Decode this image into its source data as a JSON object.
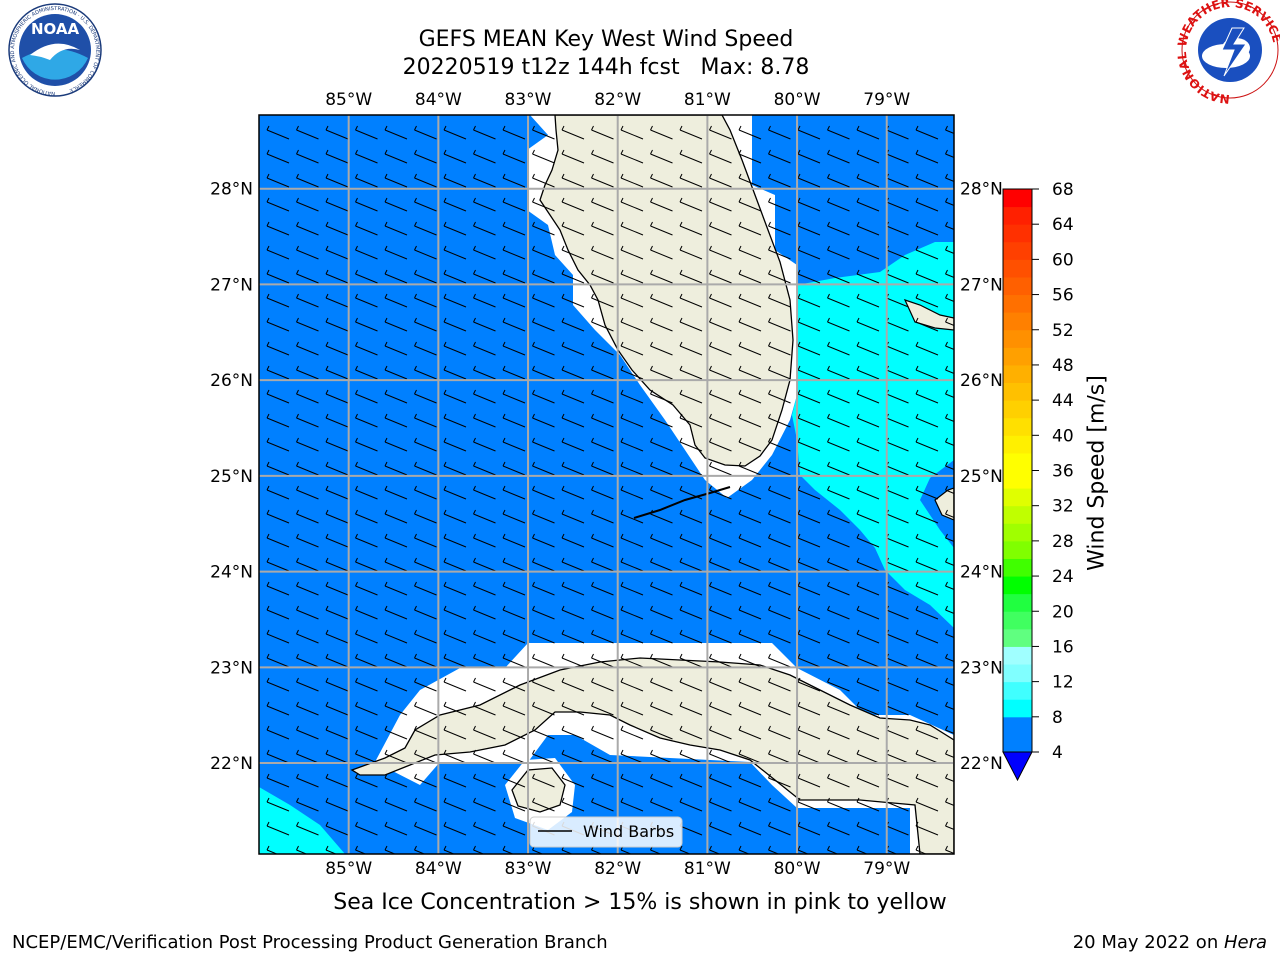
{
  "title": {
    "line1": "GEFS MEAN Key West Wind Speed",
    "line2": "20220519 t12z 144h fcst   Max: 8.78"
  },
  "logos": {
    "noaa_text": "NOAA",
    "noaa_ring_text": "NATIONAL OCEANIC AND ATMOSPHERIC ADMINISTRATION · U.S. DEPARTMENT OF COMMERCE",
    "nws_ring_text": "NATIONAL WEATHER SERVICE"
  },
  "map": {
    "lon_labels": [
      "85°W",
      "84°W",
      "83°W",
      "82°W",
      "81°W",
      "80°W",
      "79°W"
    ],
    "lat_labels": [
      "28°N",
      "27°N",
      "26°N",
      "25°N",
      "24°N",
      "23°N",
      "22°N"
    ],
    "lon_values": [
      -85,
      -84,
      -83,
      -82,
      -81,
      -80,
      -79
    ],
    "lat_values": [
      28,
      27,
      26,
      25,
      24,
      23,
      22
    ],
    "extent": {
      "lon_min": -86,
      "lon_max": -78.25,
      "lat_min": 21.05,
      "lat_max": 28.77
    },
    "legend_label": "Wind Barbs"
  },
  "colorbar": {
    "label": "Wind Speed [m/s]",
    "ticks": [
      "68",
      "64",
      "60",
      "56",
      "52",
      "48",
      "44",
      "40",
      "36",
      "32",
      "28",
      "24",
      "20",
      "16",
      "12",
      "8",
      "4"
    ],
    "levels": [
      4,
      8,
      10,
      12,
      14,
      16,
      18,
      20,
      22,
      24,
      26,
      28,
      30,
      32,
      34,
      36,
      38,
      40,
      42,
      44,
      46,
      48,
      50,
      52,
      54,
      56,
      58,
      60,
      62,
      64,
      66,
      68
    ],
    "colors": [
      "#0080ff",
      "#00ffff",
      "#40ffff",
      "#80ffff",
      "#a0ffff",
      "#60ff80",
      "#40ff60",
      "#20ff40",
      "#00ff00",
      "#40ff00",
      "#80ff00",
      "#a0ff00",
      "#c0ff00",
      "#e0ff00",
      "#ffff00",
      "#ffff00",
      "#fff000",
      "#ffe000",
      "#ffd000",
      "#ffc000",
      "#ffb000",
      "#ffa000",
      "#ff9000",
      "#ff8000",
      "#ff7000",
      "#ff6000",
      "#ff5000",
      "#ff4000",
      "#ff3000",
      "#ff2000",
      "#ff0000"
    ],
    "under_color": "#0000ff"
  },
  "fill_colors": {
    "ocean_low": "#0080ff",
    "ocean_high": "#00ffff",
    "land": "#eeeedd"
  },
  "caption": "Sea Ice Concentration > 15% is shown in pink to yellow",
  "footer": {
    "left": "NCEP/EMC/Verification Post Processing Product Generation Branch",
    "right_date": "20 May 2022 on ",
    "right_host": "Hera"
  }
}
